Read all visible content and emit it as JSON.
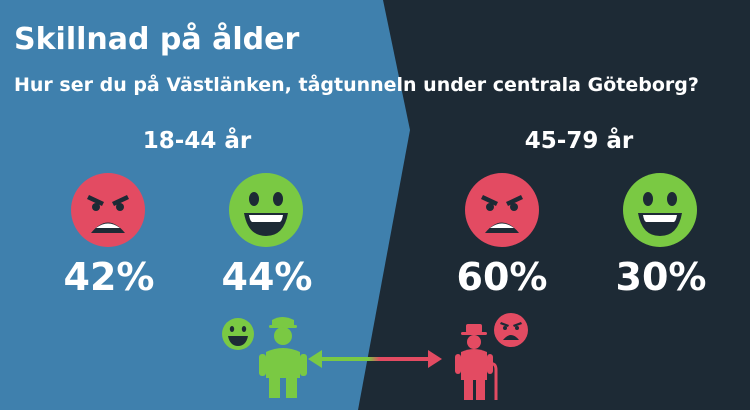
{
  "header": {
    "title": "Skillnad på ålder",
    "subtitle": "Hur ser du på Västlänken, tågtunneln under centrala Göteborg?"
  },
  "colors": {
    "left_bg": "#3f80ad",
    "right_bg": "#1d2a35",
    "negative": "#e34b62",
    "positive": "#7ac943",
    "text": "#ffffff"
  },
  "chart_data": {
    "type": "bar",
    "categories": [
      "18-44 år",
      "45-79 år"
    ],
    "series": [
      {
        "icon": "angry-face-icon",
        "color": "#e34b62",
        "values": [
          42,
          60
        ],
        "labels": [
          "42%",
          "60%"
        ]
      },
      {
        "icon": "happy-face-icon",
        "color": "#7ac943",
        "values": [
          44,
          30
        ],
        "labels": [
          "44%",
          "30%"
        ]
      }
    ],
    "unit": "%"
  },
  "illustration": {
    "icons": [
      "happy-face-icon",
      "young-person-icon",
      "double-arrow-icon",
      "old-person-icon",
      "angry-face-icon"
    ]
  }
}
